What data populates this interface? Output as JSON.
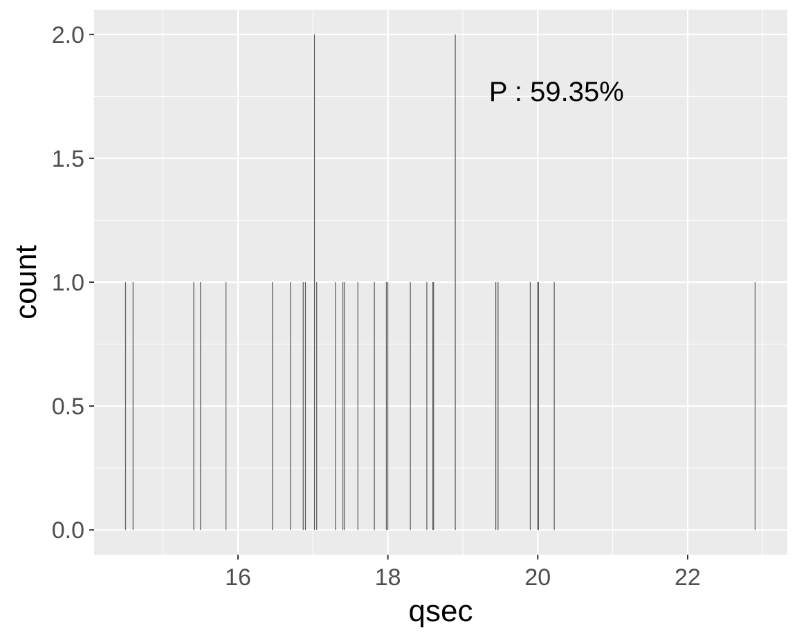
{
  "chart_data": {
    "type": "bar",
    "xlabel": "qsec",
    "ylabel": "count",
    "xlim": [
      14.08,
      23.33
    ],
    "ylim": [
      -0.1,
      2.1
    ],
    "x_ticks": [
      16,
      18,
      20,
      22
    ],
    "y_ticks": [
      0.0,
      0.5,
      1.0,
      1.5,
      2.0
    ],
    "x_tick_labels": [
      "16",
      "18",
      "20",
      "22"
    ],
    "y_tick_labels": [
      "0.0",
      "0.5",
      "1.0",
      "1.5",
      "2.0"
    ],
    "grid": true,
    "bar_color": "#595959",
    "panel_background": "#ebebeb",
    "grid_color": "#ffffff",
    "annotation": {
      "text": "P : 59.35%",
      "x": 19.35,
      "y": 1.77
    },
    "bars": [
      {
        "x": 14.5,
        "count": 1
      },
      {
        "x": 14.6,
        "count": 1
      },
      {
        "x": 15.41,
        "count": 1
      },
      {
        "x": 15.5,
        "count": 1
      },
      {
        "x": 15.84,
        "count": 1
      },
      {
        "x": 16.46,
        "count": 1
      },
      {
        "x": 16.7,
        "count": 1
      },
      {
        "x": 16.87,
        "count": 1
      },
      {
        "x": 16.9,
        "count": 1
      },
      {
        "x": 17.02,
        "count": 2
      },
      {
        "x": 17.05,
        "count": 1
      },
      {
        "x": 17.3,
        "count": 1
      },
      {
        "x": 17.4,
        "count": 1
      },
      {
        "x": 17.42,
        "count": 1
      },
      {
        "x": 17.6,
        "count": 1
      },
      {
        "x": 17.82,
        "count": 1
      },
      {
        "x": 17.98,
        "count": 1
      },
      {
        "x": 18.0,
        "count": 1
      },
      {
        "x": 18.3,
        "count": 1
      },
      {
        "x": 18.52,
        "count": 1
      },
      {
        "x": 18.6,
        "count": 1
      },
      {
        "x": 18.61,
        "count": 1
      },
      {
        "x": 18.9,
        "count": 2
      },
      {
        "x": 19.44,
        "count": 1
      },
      {
        "x": 19.47,
        "count": 1
      },
      {
        "x": 19.9,
        "count": 1
      },
      {
        "x": 20.0,
        "count": 1
      },
      {
        "x": 20.01,
        "count": 1
      },
      {
        "x": 20.22,
        "count": 1
      },
      {
        "x": 22.9,
        "count": 1
      }
    ]
  }
}
